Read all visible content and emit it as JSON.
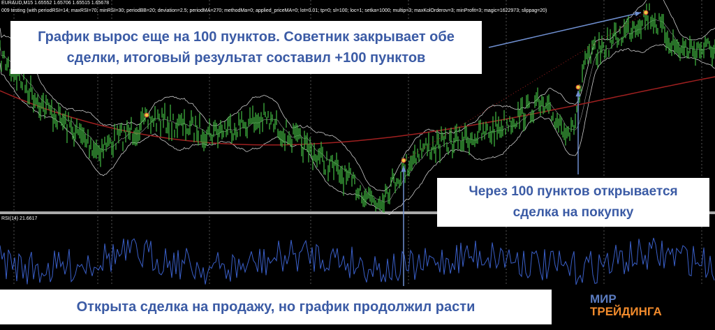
{
  "header": {
    "symbol_line": "EURAUD,M15  1.65552 1.65706 1.65515 1.65678",
    "params_line": "009 testing (with periodRSI=14; maxRSI=70; minRSI=30; periodBB=20; deviation=2.5; periodMA=270; methodMa=0; applied_priceMA=0; lot=0.01; tp=0; sl=100; loc=1; setka=1000; multip=3; maxKolOrderov=3; minProfit=3; magic=1622973; slippag=20)"
  },
  "indicator": {
    "label": "RSI(14) 21.6617"
  },
  "annotations": {
    "close": "График вырос еще на 100 пунктов. Советник закрывает обе сделки, итоговый результат составил +100 пунктов",
    "buy": "Через 100 пунктов открывается сделка на покупку",
    "sell": "Открыта сделка на продажу, но график продолжил расти"
  },
  "logo": {
    "line1": "МИР",
    "line2": "ТРЕЙДИНГА"
  }
}
